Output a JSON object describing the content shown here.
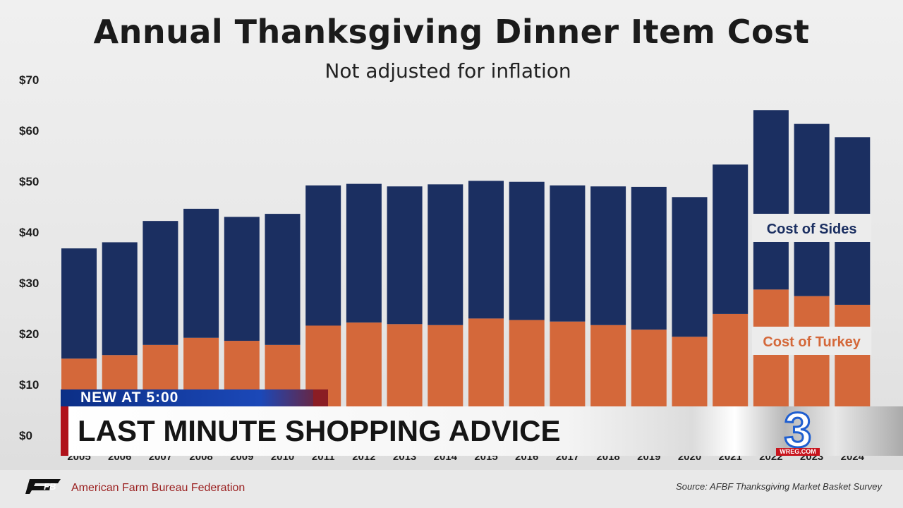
{
  "chart_data": {
    "type": "bar",
    "stacked": true,
    "title": "Annual Thanksgiving Dinner Item Cost",
    "subtitle": "Not adjusted for inflation",
    "categories": [
      "2005",
      "2006",
      "2007",
      "2008",
      "2009",
      "2010",
      "2011",
      "2012",
      "2013",
      "2014",
      "2015",
      "2016",
      "2017",
      "2018",
      "2019",
      "2020",
      "2021",
      "2022",
      "2023",
      "2024"
    ],
    "series": [
      {
        "name": "Cost of Turkey",
        "color": "#d4683a",
        "values": [
          15.1,
          15.8,
          17.8,
          19.2,
          18.6,
          17.8,
          21.6,
          22.2,
          21.9,
          21.7,
          23.0,
          22.7,
          22.4,
          21.7,
          20.8,
          19.4,
          23.9,
          28.7,
          27.4,
          25.7
        ]
      },
      {
        "name": "Cost of Sides",
        "color": "#1b2f61",
        "values": [
          21.7,
          22.2,
          24.4,
          25.4,
          24.4,
          25.8,
          27.6,
          27.3,
          27.1,
          27.7,
          27.1,
          27.2,
          26.8,
          27.3,
          28.1,
          27.5,
          29.4,
          35.3,
          33.9,
          33.0
        ]
      }
    ],
    "y_ticks": [
      "$0",
      "$10",
      "$20",
      "$30",
      "$40",
      "$50",
      "$60",
      "$70"
    ],
    "ylim": [
      0,
      70
    ],
    "grid": false,
    "legend": "in-chart labels on right bars"
  },
  "overlay": {
    "tag": "NEW AT 5:00",
    "headline": "LAST MINUTE SHOPPING ADVICE",
    "station_number": "3",
    "station_url": "WREG.COM"
  },
  "footer": {
    "org_logo_text": "FB",
    "org_name": "American Farm Bureau Federation",
    "source": "Source: AFBF Thanksgiving Market Basket Survey"
  }
}
